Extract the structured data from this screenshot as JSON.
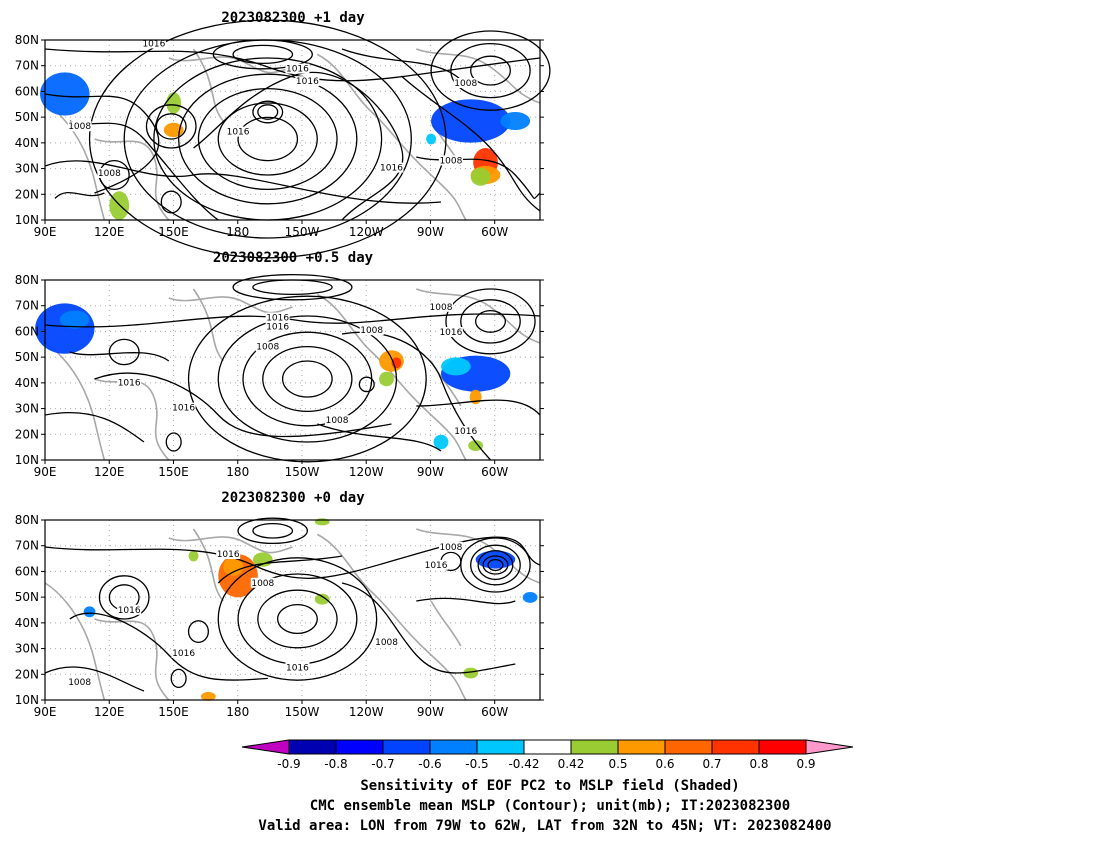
{
  "panels": [
    {
      "title": "2023082300  +1  day",
      "contour_labels": [
        "1016",
        "1016",
        "1016",
        "1008",
        "1008",
        "1016",
        "1008",
        "1016",
        "1008"
      ]
    },
    {
      "title": "2023082300  +0.5  day",
      "contour_labels": [
        "1008",
        "1016",
        "1016",
        "1008",
        "1016",
        "1008",
        "1016",
        "1016",
        "1008",
        "1016"
      ]
    },
    {
      "title": "2023082300  +0  day",
      "contour_labels": [
        "1008",
        "1016",
        "1016",
        "1008",
        "1016",
        "1016",
        "1016",
        "1008",
        "1008"
      ]
    }
  ],
  "lat_ticks": [
    "80N",
    "70N",
    "60N",
    "50N",
    "40N",
    "30N",
    "20N",
    "10N"
  ],
  "lon_ticks": [
    "90E",
    "120E",
    "150E",
    "180",
    "150W",
    "120W",
    "90W",
    "60W"
  ],
  "colorbar": {
    "labels": [
      "-0.9",
      "-0.8",
      "-0.7",
      "-0.6",
      "-0.5",
      "-0.42",
      "0.42",
      "0.5",
      "0.6",
      "0.7",
      "0.8",
      "0.9"
    ],
    "colors": [
      "#c000c0",
      "#0000b0",
      "#0000ff",
      "#0044ff",
      "#0080ff",
      "#00c8ff",
      "#ffffff",
      "#99cc33",
      "#ff9900",
      "#ff6600",
      "#ff3300",
      "#ff0000",
      "#ff99cc"
    ]
  },
  "caption": {
    "line1": "Sensitivity of EOF PC2 to MSLP field (Shaded)",
    "line2": "CMC ensemble mean MSLP (Contour); unit(mb); IT:2023082300",
    "line3": "Valid area: LON from 79W to 62W, LAT from 32N to 45N; VT: 2023082400"
  }
}
